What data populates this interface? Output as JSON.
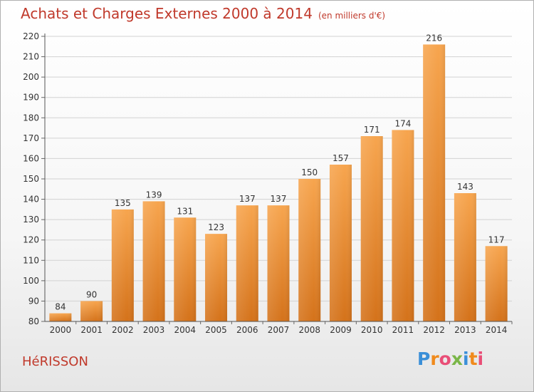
{
  "title": "Achats et Charges Externes 2000 à 2014",
  "unit": "(en milliers d'€)",
  "town": "HéRISSON",
  "logo": {
    "letters": [
      "P",
      "r",
      "o",
      "x",
      "i",
      "t",
      "i"
    ],
    "colors": [
      "#3a8fd8",
      "#f08a1c",
      "#e94e77",
      "#7ab648",
      "#3a8fd8",
      "#f08a1c",
      "#e94e77"
    ]
  },
  "chart_data": {
    "type": "bar",
    "title": "Achats et Charges Externes 2000 à 2014",
    "categories": [
      "2000",
      "2001",
      "2002",
      "2003",
      "2004",
      "2005",
      "2006",
      "2007",
      "2008",
      "2009",
      "2010",
      "2011",
      "2012",
      "2013",
      "2014"
    ],
    "values": [
      84,
      90,
      135,
      139,
      131,
      123,
      137,
      137,
      150,
      157,
      171,
      174,
      216,
      143,
      117
    ],
    "data_labels": [
      "84",
      "90",
      "135",
      "139",
      "131",
      "123",
      "137",
      "137",
      "150",
      "157",
      "171",
      "174",
      "216",
      "143",
      "117"
    ],
    "ylim": [
      80,
      220
    ],
    "yticks": [
      "80",
      "90",
      "100",
      "110",
      "120",
      "130",
      "140",
      "150",
      "160",
      "170",
      "180",
      "190",
      "200",
      "210",
      "220"
    ],
    "grid": true,
    "bar_color_top": "#f7a54e",
    "bar_color_bottom": "#d4721a",
    "xlabel": "",
    "ylabel": ""
  }
}
